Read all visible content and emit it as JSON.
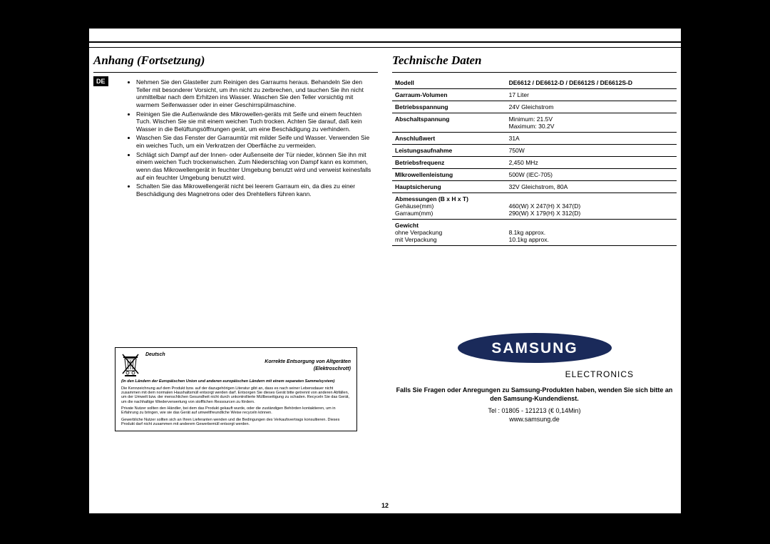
{
  "left": {
    "heading": "Anhang (Fortsetzung)",
    "lang_badge": "DE",
    "bullets": [
      "Nehmen Sie den Glasteller zum Reinigen des Garraums heraus. Behandeln Sie den Teller mit besonderer Vorsicht, um ihn nicht zu zerbrechen, und tauchen Sie ihn nicht unmittelbar nach dem Erhitzen ins Wasser. Waschen Sie den Teller vorsichtig mit warmem Seifenwasser oder in einer Geschirrspülmaschine.",
      "Reinigen Sie die Außenwände des Mikrowellen-geräts mit Seife und einem feuchten Tuch. Wischen Sie sie mit einem weichen Tuch trocken. Achten Sie darauf, daß kein Wasser in die Belüftungsöffnungen gerät, um eine Beschädigung zu verhindern.",
      "Waschen Sie das Fenster der Garraumtür mit milder Seife und Wasser. Verwenden Sie ein weiches Tuch, um ein Verkratzen der Oberfläche zu vermeiden.",
      "Schlägt sich Dampf auf der Innen- oder  Außenseite der Tür nieder, können Sie ihn mit einem weichen Tuch trockenwischen. Zum Niederschlag von Dampf kann es kommen, wenn das Mikrowellengerät in feuchter Umgebung benutzt wird und  verweist keinesfalls auf ein feuchter Umgebung benutzt wird.",
      "Schalten Sie das Mikrowellengerät nicht bei leerem Garraum ein, da dies zu einer Beschädigung des Magnetrons oder des Drehtellers führen kann."
    ],
    "disposal": {
      "lang": "Deutsch",
      "title1": "Korrekte Entsorgung von Altgeräten",
      "title2": "(Elektroschrott)",
      "para_bold": "(In den Ländern der Europäischen Union und anderen europäischen Ländern mit einem separaten Sammelsystem)",
      "body1": "Die Kennzeichnung auf dem Produkt bzw. auf der dazugehörigen Literatur gibt an, dass es nach seiner Lebensdauer nicht zusammen mit dem normalen Haushaltsmüll entsorgt werden darf. Entsorgen Sie dieses Gerät bitte getrennt von anderen Abfällen, um der Umwelt bzw. der menschlichen Gesundheit nicht durch unkontrollierte Müllbeseitigung zu schaden. Recyceln Sie das Gerät, um die nachhaltige Wiederverwertung von stofflichen Ressourcen zu fördern.",
      "body2": "Private Nutzer sollten den Händler, bei dem das Produkt gekauft wurde, oder die zuständigen Behörden kontaktieren, um in Erfahrung zu bringen, wie sie das Gerät auf umweltfreundliche Weise recyceln können.",
      "body3": "Gewerbliche Nutzer sollten sich an Ihren Lieferanten wenden und die Bedingungen des Verkaufsvertrags konsultieren. Dieses Produkt darf nicht zusammen mit anderem Gewerbemüll entsorgt werden."
    }
  },
  "right": {
    "heading": "Technische Daten",
    "specs": [
      {
        "label": "Modell",
        "value": "DE6612 / DE6612-D / DE6612S / DE6612S-D",
        "bold_value": true
      },
      {
        "label": "Garraum-Volumen",
        "value": "17 Liter"
      },
      {
        "label": "Betriebsspannung",
        "value": "24V Gleichstrom"
      },
      {
        "label": "Abschaltspannung",
        "value": "Minimum: 21.5V\nMaximum: 30.2V"
      },
      {
        "label": "Anschlußwert",
        "value": "31A"
      },
      {
        "label": "Leistungsaufnahme",
        "value": "750W"
      },
      {
        "label": "Betriebsfrequenz",
        "value": "2,450 MHz"
      },
      {
        "label": "MIkrowellenleistung",
        "value": "500W (IEC-705)"
      },
      {
        "label": "Hauptsicherung",
        "value": "32V Gleichstrom, 80A"
      },
      {
        "label": "Abmessungen (B x H x T)",
        "sub1": "Gehäuse(mm)",
        "sub2": "Garraum(mm)",
        "val1": "460(W) X 247(H) X 347(D)",
        "val2": "290(W) X 179(H) X 312(D)"
      },
      {
        "label": "Gewicht",
        "sub1": "ohne Verpackung",
        "sub2": "mit Verpackung",
        "val1": "8.1kg approx.",
        "val2": "10.1kg approx."
      }
    ],
    "electronics": "ELECTRONICS",
    "contact_bold": "Falls Sie Fragen oder Anregungen zu Samsung-Produkten haben, wenden Sie sich bitte an den Samsung-Kundendienst.",
    "tel": "Tel : 01805 - 121213 (€ 0,14Min)",
    "url": "www.samsung.de"
  },
  "page_number": "12"
}
